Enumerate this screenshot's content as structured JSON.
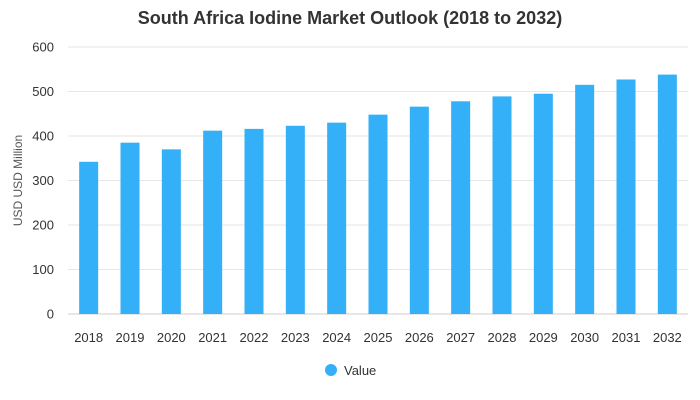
{
  "chart_data": {
    "type": "bar",
    "title": "South Africa Iodine Market Outlook (2018 to 2032)",
    "xlabel": "",
    "ylabel": "USD USD Million",
    "ylim": [
      0,
      600
    ],
    "yticks": [
      0,
      100,
      200,
      300,
      400,
      500,
      600
    ],
    "categories": [
      "2018",
      "2019",
      "2020",
      "2021",
      "2022",
      "2023",
      "2024",
      "2025",
      "2026",
      "2027",
      "2028",
      "2029",
      "2030",
      "2031",
      "2032"
    ],
    "series": [
      {
        "name": "Value",
        "values": [
          342,
          385,
          370,
          412,
          416,
          423,
          430,
          448,
          466,
          478,
          489,
          495,
          515,
          527,
          538
        ]
      }
    ],
    "grid": true,
    "legend_position": "bottom",
    "colors": {
      "bar": "#33b0f7",
      "grid": "#e6e6e6",
      "axis": "#cccccc"
    }
  }
}
